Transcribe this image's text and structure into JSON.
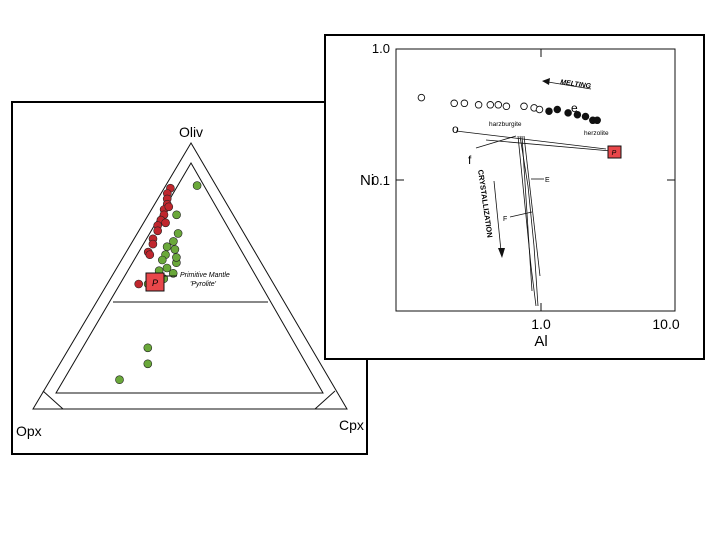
{
  "colors": {
    "olivine_rich_points": "#c0262d",
    "green_points": "#6aa83a",
    "pyrolite_marker": "#e8474a",
    "ink": "#111111"
  },
  "ternary": {
    "labels": {
      "top": "Oliv",
      "left": "Opx",
      "right": "Cpx"
    },
    "pyrolite_label_1": "Primitive Mantle",
    "pyrolite_label_2": "'Pyrolite'",
    "pyrolite_symbol": "P"
  },
  "ni_al": {
    "y_label": "Ni",
    "x_label": "Al",
    "melting_label": "MELTING",
    "crystallization_label": "CRYSTALLIZATION",
    "harzburgite_label": "harzburgite",
    "lherzolite_label": "herzolite",
    "label_e_small": "e",
    "label_f_small": "f",
    "label_E": "E",
    "label_F": "F",
    "label_o": "o",
    "pyrolite_symbol": "P"
  },
  "chart_data": [
    {
      "type": "scatter",
      "title": "",
      "vertex_labels": [
        "Oliv",
        "Opx",
        "Cpx"
      ],
      "series": [
        {
          "name": "",
          "color": "red",
          "points_oliv_opx_cpx": [
            [
              0.83,
              0.15,
              0.02
            ],
            [
              0.81,
              0.17,
              0.02
            ],
            [
              0.79,
              0.18,
              0.03
            ],
            [
              0.77,
              0.19,
              0.04
            ],
            [
              0.75,
              0.21,
              0.04
            ],
            [
              0.73,
              0.22,
              0.05
            ],
            [
              0.71,
              0.24,
              0.05
            ],
            [
              0.69,
              0.26,
              0.05
            ],
            [
              0.67,
              0.27,
              0.06
            ],
            [
              0.64,
              0.3,
              0.06
            ],
            [
              0.62,
              0.31,
              0.07
            ],
            [
              0.59,
              0.34,
              0.07
            ],
            [
              0.58,
              0.34,
              0.08
            ],
            [
              0.47,
              0.43,
              0.1
            ],
            [
              0.76,
              0.19,
              0.05
            ],
            [
              0.7,
              0.23,
              0.07
            ]
          ]
        },
        {
          "name": "",
          "color": "green",
          "points_oliv_opx_cpx": [
            [
              0.84,
              0.06,
              0.1
            ],
            [
              0.73,
              0.18,
              0.09
            ],
            [
              0.66,
              0.21,
              0.13
            ],
            [
              0.63,
              0.24,
              0.13
            ],
            [
              0.61,
              0.27,
              0.12
            ],
            [
              0.6,
              0.25,
              0.15
            ],
            [
              0.58,
              0.29,
              0.13
            ],
            [
              0.56,
              0.31,
              0.13
            ],
            [
              0.55,
              0.27,
              0.18
            ],
            [
              0.53,
              0.31,
              0.16
            ],
            [
              0.52,
              0.34,
              0.14
            ],
            [
              0.51,
              0.3,
              0.19
            ],
            [
              0.49,
              0.34,
              0.17
            ],
            [
              0.47,
              0.4,
              0.13
            ],
            [
              0.23,
              0.52,
              0.25
            ],
            [
              0.17,
              0.55,
              0.28
            ],
            [
              0.11,
              0.67,
              0.22
            ],
            [
              0.57,
              0.26,
              0.17
            ]
          ]
        }
      ],
      "pyrolite": {
        "label": "Primitive Mantle 'Pyrolite'",
        "oliv_opx_cpx": [
          0.52,
          0.29,
          0.19
        ]
      }
    },
    {
      "type": "scatter",
      "title": "",
      "xlabel": "Al",
      "ylabel": "Ni",
      "xscale": "log",
      "yscale": "log",
      "xlim": [
        0.15,
        10.0
      ],
      "ylim": [
        0.012,
        1.0
      ],
      "xticks": [
        "1.0",
        "10.0"
      ],
      "yticks": [
        "1.0",
        "0.1"
      ],
      "series": [
        {
          "name": "harzburgite",
          "marker": "open circle",
          "x": [
            0.22,
            0.36,
            0.42,
            0.52,
            0.62,
            0.7,
            0.79,
            1.03,
            1.2,
            1.3
          ],
          "y": [
            0.44,
            0.4,
            0.4,
            0.39,
            0.39,
            0.39,
            0.38,
            0.38,
            0.37,
            0.36
          ]
        },
        {
          "name": "herzolite",
          "marker": "filled circle",
          "x": [
            1.5,
            1.7,
            2.0,
            2.3,
            2.6,
            2.9,
            3.1
          ],
          "y": [
            0.35,
            0.36,
            0.34,
            0.33,
            0.32,
            0.3,
            0.3
          ]
        }
      ],
      "annotations": [
        "MELTING",
        "CRYSTALLIZATION",
        "e",
        "f",
        "E",
        "F",
        "o"
      ],
      "pyrolite": {
        "x": 3.6,
        "y": 0.28
      }
    }
  ]
}
